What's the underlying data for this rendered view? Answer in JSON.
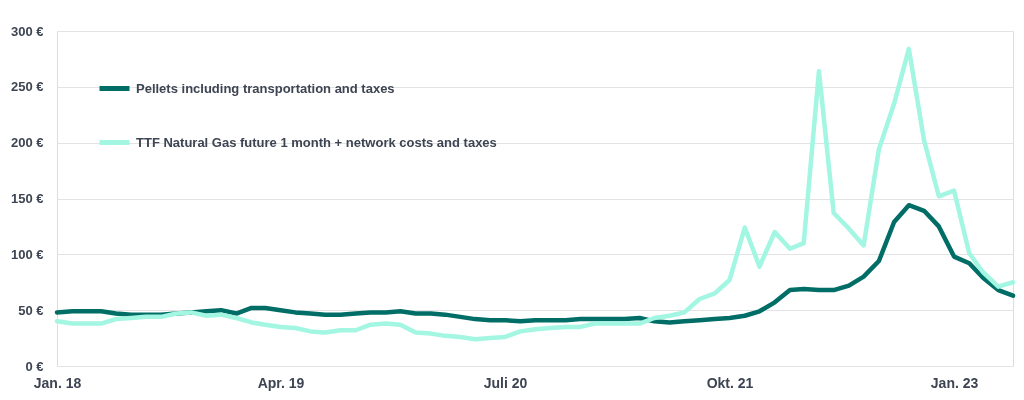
{
  "chart_data": {
    "type": "line",
    "x": [
      "2018-01",
      "2018-02",
      "2018-03",
      "2018-04",
      "2018-05",
      "2018-06",
      "2018-07",
      "2018-08",
      "2018-09",
      "2018-10",
      "2018-11",
      "2018-12",
      "2019-01",
      "2019-02",
      "2019-03",
      "2019-04",
      "2019-05",
      "2019-06",
      "2019-07",
      "2019-08",
      "2019-09",
      "2019-10",
      "2019-11",
      "2019-12",
      "2020-01",
      "2020-02",
      "2020-03",
      "2020-04",
      "2020-05",
      "2020-06",
      "2020-07",
      "2020-08",
      "2020-09",
      "2020-10",
      "2020-11",
      "2020-12",
      "2021-01",
      "2021-02",
      "2021-03",
      "2021-04",
      "2021-05",
      "2021-06",
      "2021-07",
      "2021-08",
      "2021-09",
      "2021-10",
      "2021-11",
      "2021-12",
      "2022-01",
      "2022-02",
      "2022-03",
      "2022-04",
      "2022-05",
      "2022-06",
      "2022-07",
      "2022-08",
      "2022-09",
      "2022-10",
      "2022-11",
      "2022-12",
      "2023-01",
      "2023-02",
      "2023-03",
      "2023-04",
      "2023-05"
    ],
    "series": [
      {
        "name": "Pellets including transportation and taxes",
        "color": "#006e66",
        "values": [
          48,
          49,
          49,
          49,
          47,
          46,
          46,
          46,
          47,
          48,
          49,
          50,
          47,
          52,
          52,
          50,
          48,
          47,
          46,
          46,
          47,
          48,
          48,
          49,
          47,
          47,
          46,
          44,
          42,
          41,
          41,
          40,
          41,
          41,
          41,
          42,
          42,
          42,
          42,
          43,
          40,
          39,
          40,
          41,
          42,
          43,
          45,
          49,
          57,
          68,
          69,
          68,
          68,
          72,
          80,
          94,
          129,
          144,
          139,
          125,
          98,
          92,
          79,
          68,
          63
        ]
      },
      {
        "name": "TTF Natural Gas future 1 month + network costs and taxes",
        "color": "#a2f6e2",
        "values": [
          40,
          38,
          38,
          38,
          42,
          43,
          44,
          44,
          47,
          48,
          45,
          46,
          43,
          39,
          37,
          35,
          34,
          31,
          30,
          32,
          32,
          37,
          38,
          37,
          30,
          29,
          27,
          26,
          24,
          25,
          26,
          31,
          33,
          34,
          35,
          35,
          38,
          38,
          38,
          38,
          43,
          45,
          48,
          60,
          65,
          77,
          124,
          89,
          120,
          105,
          110,
          264,
          137,
          123,
          108,
          194,
          235,
          284,
          202,
          152,
          157,
          101,
          84,
          71,
          75
        ]
      }
    ],
    "xlim": [
      "2018-01",
      "2023-05"
    ],
    "xticks": [
      {
        "value": "2018-01",
        "label": "Jan. 18"
      },
      {
        "value": "2019-04",
        "label": "Apr. 19"
      },
      {
        "value": "2020-07",
        "label": "Juli 20"
      },
      {
        "value": "2021-10",
        "label": "Okt. 21"
      },
      {
        "value": "2023-01",
        "label": "Jan. 23"
      }
    ],
    "ylim": [
      0,
      300
    ],
    "yticks": [
      {
        "value": 0,
        "label": "0 €"
      },
      {
        "value": 50,
        "label": "50 €"
      },
      {
        "value": 100,
        "label": "100 €"
      },
      {
        "value": 150,
        "label": "150 €"
      },
      {
        "value": 200,
        "label": "200 €"
      },
      {
        "value": 250,
        "label": "250 €"
      },
      {
        "value": 300,
        "label": "300 €"
      }
    ],
    "grid": "y",
    "legend": "top left",
    "marker": "none",
    "line_style": "solid"
  }
}
